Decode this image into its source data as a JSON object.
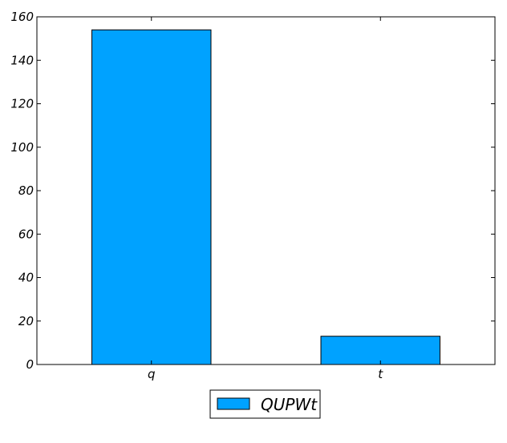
{
  "chart_data": {
    "type": "bar",
    "categories": [
      "q",
      "t"
    ],
    "series": [
      {
        "name": "QUPWt",
        "values": [
          154,
          13
        ],
        "color": "#00a2ff"
      }
    ],
    "ylim": [
      0,
      160
    ],
    "yticks": [
      0,
      20,
      40,
      60,
      80,
      100,
      120,
      140,
      160
    ],
    "grid": false,
    "legend_position": "bottom-center"
  }
}
